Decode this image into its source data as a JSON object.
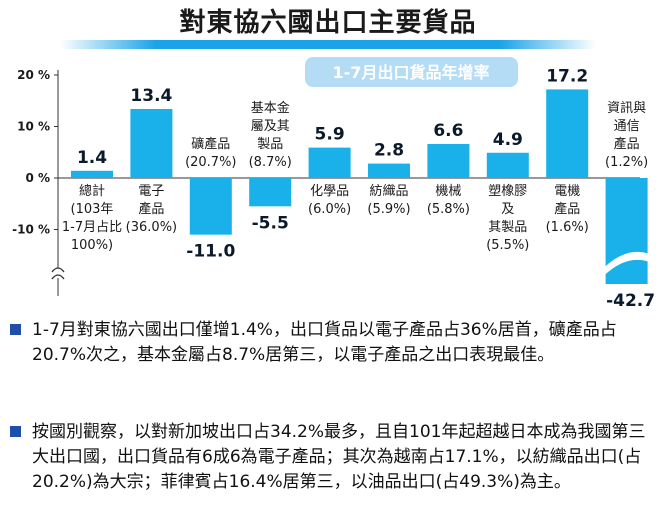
{
  "title": "對東協六國出口主要貨品",
  "colors": {
    "bar": "#1ab0ea",
    "title_bar": "#1aa3e8",
    "bullet": "#1f4fa8",
    "legend_bg": "#b5dcf5",
    "legend_text": "#ffffff"
  },
  "chart_data": {
    "type": "bar",
    "title": "",
    "legend_box": "1-7月出口貨品年增率",
    "yticks": [
      "20 %",
      "10 %",
      "0 %",
      "-10 %"
    ],
    "ylim": [
      -15,
      20
    ],
    "axis_break": true,
    "categories": [
      {
        "name": "總計",
        "value": 1.4,
        "value_label": "1.4",
        "desc": [
          "總計",
          "(103年",
          "1-7月占比",
          "100%)"
        ]
      },
      {
        "name": "電子產品",
        "value": 13.4,
        "value_label": "13.4",
        "desc": [
          "電子",
          "產品",
          "(36.0%)"
        ]
      },
      {
        "name": "礦產品",
        "value": -11.0,
        "value_label": "-11.0",
        "desc": [
          "礦產品",
          "(20.7%)"
        ]
      },
      {
        "name": "基本金屬及其製品",
        "value": -5.5,
        "value_label": "-5.5",
        "desc": [
          "基本金",
          "屬及其",
          "製品",
          "(8.7%)"
        ]
      },
      {
        "name": "化學品",
        "value": 5.9,
        "value_label": "5.9",
        "desc": [
          "化學品",
          "(6.0%)"
        ]
      },
      {
        "name": "紡織品",
        "value": 2.8,
        "value_label": "2.8",
        "desc": [
          "紡織品",
          "(5.9%)"
        ]
      },
      {
        "name": "機械",
        "value": 6.6,
        "value_label": "6.6",
        "desc": [
          "機械",
          "(5.8%)"
        ]
      },
      {
        "name": "塑橡膠及其製品",
        "value": 4.9,
        "value_label": "4.9",
        "desc": [
          "塑橡膠",
          "及",
          "其製品",
          "(5.5%)"
        ]
      },
      {
        "name": "電機產品",
        "value": 17.2,
        "value_label": "17.2",
        "desc": [
          "電機",
          "產品",
          "(1.6%)"
        ]
      },
      {
        "name": "資訊與通信產品",
        "value": -42.7,
        "value_label": "-42.7",
        "desc": [
          "資訊與",
          "通信",
          "產品",
          "(1.2%)"
        ]
      }
    ]
  },
  "bullets": [
    "1-7月對東協六國出口僅增1.4%，出口貨品以電子產品占36%居首，礦產品占20.7%次之，基本金屬占8.7%居第三，以電子產品之出口表現最佳。",
    "按國別觀察，以對新加坡出口占34.2%最多，且自101年起超越日本成為我國第三大出口國，出口貨品有6成6為電子產品；其次為越南占17.1%，以紡織品出口(占20.2%)為大宗；菲律賓占16.4%居第三，以油品出口(占49.3%)為主。"
  ]
}
